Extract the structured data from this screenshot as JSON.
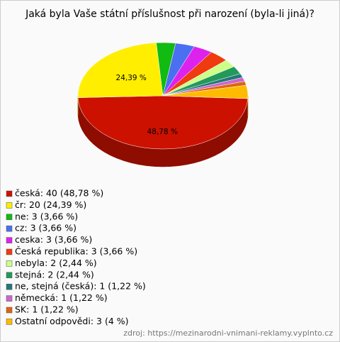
{
  "chart_data": {
    "type": "pie",
    "title": "Jaká byla Vaše státní příslušnost při narození (byla-li jiná)?",
    "categories": [
      "česká: 40 (48,78 %)",
      "čr: 20 (24,39 %)",
      "ne: 3 (3,66 %)",
      "cz: 3 (3,66 %)",
      "ceska: 3 (3,66 %)",
      "Česká republika: 3 (3,66 %)",
      "nebyla: 2 (2,44 %)",
      "stejná: 2 (2,44 %)",
      "ne, stejná (česká): 1 (1,22 %)",
      "německá: 1 (1,22 %)",
      "SK: 1 (1,22 %)",
      "Ostatní odpovědi: 3 (4 %)"
    ],
    "values": [
      48.78,
      24.39,
      3.66,
      3.66,
      3.66,
      3.66,
      2.44,
      2.44,
      1.22,
      1.22,
      1.22,
      4
    ],
    "value_labels": [
      "48,78 %",
      "24,39 %",
      null,
      null,
      null,
      null,
      null,
      null,
      null,
      null,
      null,
      null
    ],
    "colors": [
      "#cc1100",
      "#ffee00",
      "#11bb11",
      "#4a6ff0",
      "#dd22ee",
      "#f03a10",
      "#ccff88",
      "#22995a",
      "#227777",
      "#cc66cc",
      "#dd6611",
      "#ffbb00"
    ],
    "source": "zdroj: https://mezinarodni-vnimani-reklamy.vyplnto.cz"
  }
}
